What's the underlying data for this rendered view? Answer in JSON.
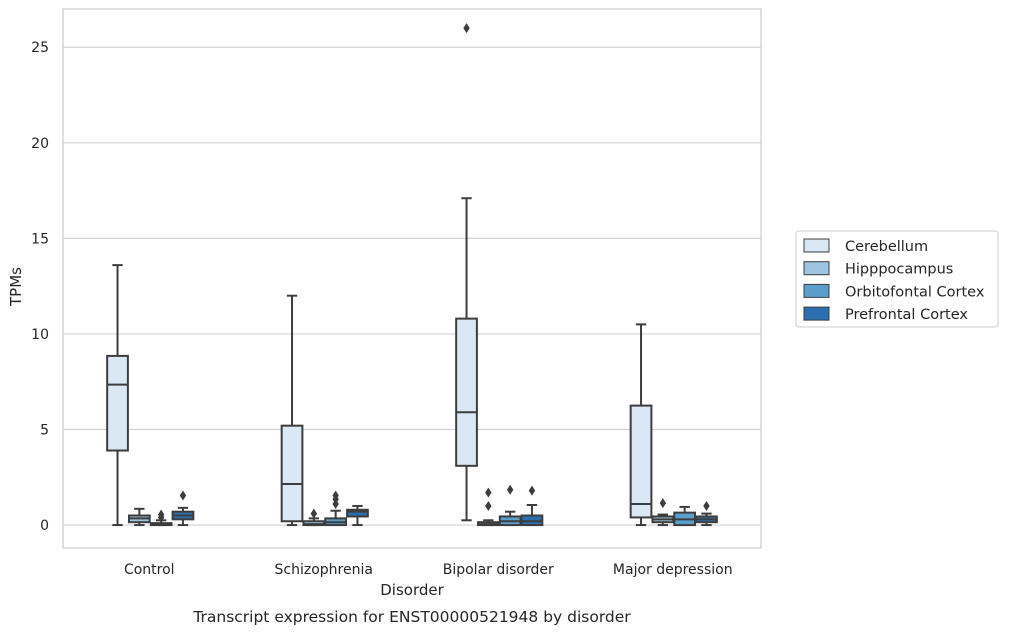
{
  "chart_data": {
    "type": "boxplot",
    "title": "Transcript expression for ENST00000521948 by disorder",
    "xlabel": "Disorder",
    "ylabel": "TPMs",
    "ylim": [
      -1.2,
      27
    ],
    "yticks": [
      0,
      5,
      10,
      15,
      20,
      25
    ],
    "grid": "horizontal",
    "legend_position": "right",
    "categories": [
      "Control",
      "Schizophrenia",
      "Bipolar disorder",
      "Major depression"
    ],
    "series": [
      {
        "name": "Cerebellum",
        "color": "#dae8f5",
        "boxes": [
          {
            "whislo": 0.0,
            "q1": 3.9,
            "med": 7.35,
            "q3": 8.85,
            "whishi": 13.6,
            "fliers": []
          },
          {
            "whislo": 0.0,
            "q1": 0.2,
            "med": 2.15,
            "q3": 5.2,
            "whishi": 12.0,
            "fliers": []
          },
          {
            "whislo": 0.25,
            "q1": 3.1,
            "med": 5.9,
            "q3": 10.8,
            "whishi": 17.1,
            "fliers": [
              26.0
            ]
          },
          {
            "whislo": 0.0,
            "q1": 0.4,
            "med": 1.1,
            "q3": 6.25,
            "whishi": 10.5,
            "fliers": []
          }
        ]
      },
      {
        "name": "Hipppocampus",
        "color": "#9cc5e0",
        "boxes": [
          {
            "whislo": 0.0,
            "q1": 0.15,
            "med": 0.35,
            "q3": 0.5,
            "whishi": 0.85,
            "fliers": []
          },
          {
            "whislo": 0.0,
            "q1": 0.0,
            "med": 0.05,
            "q3": 0.2,
            "whishi": 0.35,
            "fliers": [
              0.6
            ]
          },
          {
            "whislo": 0.0,
            "q1": 0.0,
            "med": 0.05,
            "q3": 0.15,
            "whishi": 0.25,
            "fliers": [
              1.0,
              1.7
            ]
          },
          {
            "whislo": 0.0,
            "q1": 0.15,
            "med": 0.3,
            "q3": 0.45,
            "whishi": 0.55,
            "fliers": [
              1.15
            ]
          }
        ]
      },
      {
        "name": "Orbitofontal Cortex",
        "color": "#5a9fcb",
        "boxes": [
          {
            "whislo": 0.0,
            "q1": 0.0,
            "med": 0.05,
            "q3": 0.1,
            "whishi": 0.25,
            "fliers": [
              0.4,
              0.55
            ]
          },
          {
            "whislo": 0.0,
            "q1": 0.0,
            "med": 0.15,
            "q3": 0.35,
            "whishi": 0.75,
            "fliers": [
              1.1,
              1.35,
              1.55
            ]
          },
          {
            "whislo": 0.0,
            "q1": 0.0,
            "med": 0.2,
            "q3": 0.45,
            "whishi": 0.7,
            "fliers": [
              1.85
            ]
          },
          {
            "whislo": 0.0,
            "q1": 0.0,
            "med": 0.3,
            "q3": 0.65,
            "whishi": 0.95,
            "fliers": []
          }
        ]
      },
      {
        "name": "Prefrontal Cortex",
        "color": "#2b6fb0",
        "boxes": [
          {
            "whislo": 0.0,
            "q1": 0.3,
            "med": 0.5,
            "q3": 0.7,
            "whishi": 0.9,
            "fliers": [
              1.55
            ]
          },
          {
            "whislo": 0.0,
            "q1": 0.45,
            "med": 0.7,
            "q3": 0.8,
            "whishi": 1.0,
            "fliers": []
          },
          {
            "whislo": 0.0,
            "q1": 0.0,
            "med": 0.2,
            "q3": 0.5,
            "whishi": 1.05,
            "fliers": [
              1.8
            ]
          },
          {
            "whislo": 0.0,
            "q1": 0.15,
            "med": 0.3,
            "q3": 0.45,
            "whishi": 0.6,
            "fliers": [
              1.0
            ]
          }
        ]
      }
    ]
  }
}
